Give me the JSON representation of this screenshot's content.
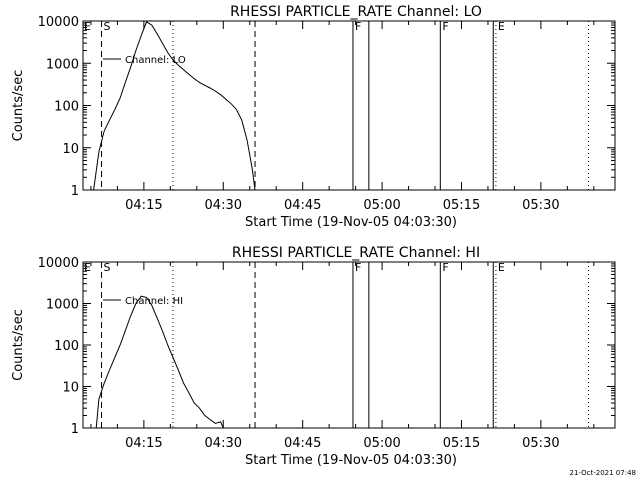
{
  "footer": {
    "timestamp": "21-Oct-2021 07:48"
  },
  "chart_data": [
    {
      "type": "line",
      "title": "RHESSI PARTICLE_RATE Channel: LO",
      "xlabel": "Start Time (19-Nov-05 04:03:30)",
      "ylabel": "Counts/sec",
      "yscale": "log",
      "ylim": [
        1,
        10000
      ],
      "xlim": [
        "04:03:30",
        "05:44:00"
      ],
      "xticks": [
        "04:15",
        "04:30",
        "04:45",
        "05:00",
        "05:15",
        "05:30"
      ],
      "yticks": [
        "1",
        "10",
        "100",
        "1000",
        "10000"
      ],
      "legend": {
        "label": "Channel: LO",
        "placement": "top-left"
      },
      "markers": [
        {
          "time": "04:07:00",
          "style": "dashed",
          "label": "S"
        },
        {
          "time": "04:20:30",
          "style": "dotted",
          "label": ""
        },
        {
          "time": "04:36:00",
          "style": "dashed",
          "label": ""
        },
        {
          "time": "04:54:30",
          "style": "solid",
          "label": "F"
        },
        {
          "time": "04:57:30",
          "style": "solid",
          "label": ""
        },
        {
          "time": "05:11:00",
          "style": "solid",
          "label": "F"
        },
        {
          "time": "05:21:00",
          "style": "solid",
          "label": ""
        },
        {
          "time": "05:21:30",
          "style": "dotted",
          "label": "E"
        },
        {
          "time": "05:39:00",
          "style": "dotted",
          "label": ""
        }
      ],
      "edge_labels": [
        {
          "time": "04:03:30",
          "label": "E"
        }
      ],
      "series": [
        {
          "name": "Channel: LO",
          "points": [
            [
              "04:05:30",
              1
            ],
            [
              "04:06:30",
              8
            ],
            [
              "04:07:30",
              25
            ],
            [
              "04:08:30",
              45
            ],
            [
              "04:09:30",
              80
            ],
            [
              "04:10:30",
              150
            ],
            [
              "04:11:30",
              350
            ],
            [
              "04:12:30",
              800
            ],
            [
              "04:13:30",
              2000
            ],
            [
              "04:14:30",
              4500
            ],
            [
              "04:15:30",
              9500
            ],
            [
              "04:16:30",
              8000
            ],
            [
              "04:17:30",
              5000
            ],
            [
              "04:18:30",
              3000
            ],
            [
              "04:19:30",
              1800
            ],
            [
              "04:20:30",
              1200
            ],
            [
              "04:21:30",
              900
            ],
            [
              "04:22:30",
              700
            ],
            [
              "04:23:30",
              550
            ],
            [
              "04:24:30",
              430
            ],
            [
              "04:25:30",
              350
            ],
            [
              "04:26:30",
              300
            ],
            [
              "04:27:30",
              260
            ],
            [
              "04:28:30",
              220
            ],
            [
              "04:29:30",
              180
            ],
            [
              "04:30:30",
              140
            ],
            [
              "04:31:30",
              110
            ],
            [
              "04:32:30",
              80
            ],
            [
              "04:33:30",
              45
            ],
            [
              "04:34:30",
              15
            ],
            [
              "04:35:30",
              3
            ],
            [
              "04:36:00",
              1
            ]
          ]
        }
      ]
    },
    {
      "type": "line",
      "title": "RHESSI PARTICLE_RATE Channel: HI",
      "xlabel": "Start Time (19-Nov-05 04:03:30)",
      "ylabel": "Counts/sec",
      "yscale": "log",
      "ylim": [
        1,
        10000
      ],
      "xlim": [
        "04:03:30",
        "05:44:00"
      ],
      "xticks": [
        "04:15",
        "04:30",
        "04:45",
        "05:00",
        "05:15",
        "05:30"
      ],
      "yticks": [
        "1",
        "10",
        "100",
        "1000",
        "10000"
      ],
      "legend": {
        "label": "Channel: HI",
        "placement": "top-left"
      },
      "markers": [
        {
          "time": "04:07:00",
          "style": "dashed",
          "label": "S"
        },
        {
          "time": "04:20:30",
          "style": "dotted",
          "label": ""
        },
        {
          "time": "04:36:00",
          "style": "dashed",
          "label": ""
        },
        {
          "time": "04:54:30",
          "style": "solid",
          "label": "F"
        },
        {
          "time": "04:57:30",
          "style": "solid",
          "label": ""
        },
        {
          "time": "05:11:00",
          "style": "solid",
          "label": "F"
        },
        {
          "time": "05:21:00",
          "style": "solid",
          "label": ""
        },
        {
          "time": "05:21:30",
          "style": "dotted",
          "label": "E"
        },
        {
          "time": "05:39:00",
          "style": "dotted",
          "label": ""
        }
      ],
      "edge_labels": [
        {
          "time": "04:03:30",
          "label": "E"
        }
      ],
      "series": [
        {
          "name": "Channel: HI",
          "points": [
            [
              "04:06:00",
              1
            ],
            [
              "04:06:30",
              5
            ],
            [
              "04:07:30",
              12
            ],
            [
              "04:08:30",
              25
            ],
            [
              "04:09:30",
              50
            ],
            [
              "04:10:30",
              100
            ],
            [
              "04:11:30",
              220
            ],
            [
              "04:12:30",
              500
            ],
            [
              "04:13:30",
              1000
            ],
            [
              "04:14:30",
              1500
            ],
            [
              "04:15:30",
              1400
            ],
            [
              "04:16:30",
              900
            ],
            [
              "04:17:30",
              450
            ],
            [
              "04:18:30",
              220
            ],
            [
              "04:19:30",
              100
            ],
            [
              "04:20:30",
              50
            ],
            [
              "04:21:30",
              25
            ],
            [
              "04:22:30",
              12
            ],
            [
              "04:23:30",
              7
            ],
            [
              "04:24:30",
              4
            ],
            [
              "04:25:30",
              3
            ],
            [
              "04:26:30",
              2
            ],
            [
              "04:27:30",
              1.6
            ],
            [
              "04:28:30",
              1.3
            ],
            [
              "04:29:30",
              1.4
            ],
            [
              "04:30:00",
              1
            ]
          ]
        }
      ]
    }
  ]
}
